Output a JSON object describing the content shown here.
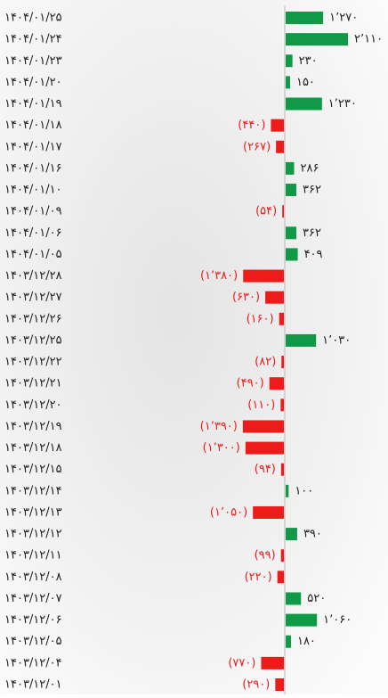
{
  "chart_data": {
    "type": "bar",
    "orientation": "horizontal",
    "categories": [
      "۱۴۰۴/۰۱/۲۵",
      "۱۴۰۴/۰۱/۲۴",
      "۱۴۰۴/۰۱/۲۳",
      "۱۴۰۴/۰۱/۲۰",
      "۱۴۰۴/۰۱/۱۹",
      "۱۴۰۴/۰۱/۱۸",
      "۱۴۰۴/۰۱/۱۷",
      "۱۴۰۴/۰۱/۱۶",
      "۱۴۰۴/۰۱/۱۰",
      "۱۴۰۴/۰۱/۰۹",
      "۱۴۰۴/۰۱/۰۶",
      "۱۴۰۴/۰۱/۰۵",
      "۱۴۰۳/۱۲/۲۸",
      "۱۴۰۳/۱۲/۲۷",
      "۱۴۰۳/۱۲/۲۶",
      "۱۴۰۳/۱۲/۲۵",
      "۱۴۰۳/۱۲/۲۲",
      "۱۴۰۳/۱۲/۲۱",
      "۱۴۰۳/۱۲/۲۰",
      "۱۴۰۳/۱۲/۱۹",
      "۱۴۰۳/۱۲/۱۸",
      "۱۴۰۳/۱۲/۱۵",
      "۱۴۰۳/۱۲/۱۴",
      "۱۴۰۳/۱۲/۱۳",
      "۱۴۰۳/۱۲/۱۲",
      "۱۴۰۳/۱۲/۱۱",
      "۱۴۰۳/۱۲/۰۸",
      "۱۴۰۳/۱۲/۰۷",
      "۱۴۰۳/۱۲/۰۶",
      "۱۴۰۳/۱۲/۰۵",
      "۱۴۰۳/۱۲/۰۴",
      "۱۴۰۳/۱۲/۰۱"
    ],
    "values": [
      1270,
      2110,
      230,
      150,
      1230,
      -440,
      -267,
      286,
      362,
      -54,
      362,
      409,
      -1380,
      -630,
      -160,
      1030,
      -82,
      -490,
      -110,
      -1390,
      -1300,
      -94,
      100,
      -1050,
      390,
      -99,
      -220,
      520,
      1060,
      180,
      -770,
      -290
    ],
    "value_labels": [
      "۱٬۲۷۰",
      "۲٬۱۱۰",
      "۲۳۰",
      "۱۵۰",
      "۱٬۲۳۰",
      "(۴۴۰)",
      "(۲۶۷)",
      "۲۸۶",
      "۳۶۲",
      "(۵۴)",
      "۳۶۲",
      "۴۰۹",
      "(۱٬۳۸۰)",
      "(۶۳۰)",
      "(۱۶۰)",
      "۱٬۰۳۰",
      "(۸۲)",
      "(۴۹۰)",
      "(۱۱۰)",
      "(۱٬۳۹۰)",
      "(۱٬۳۰۰)",
      "(۹۴)",
      "۱۰۰",
      "(۱٬۰۵۰)",
      "۳۹۰",
      "(۹۹)",
      "(۲۲۰)",
      "۵۲۰",
      "۱٬۰۶۰",
      "۱۸۰",
      "(۷۷۰)",
      "(۲۹۰)"
    ],
    "positive_color": "#109a48",
    "negative_color": "#ee1b1b"
  }
}
